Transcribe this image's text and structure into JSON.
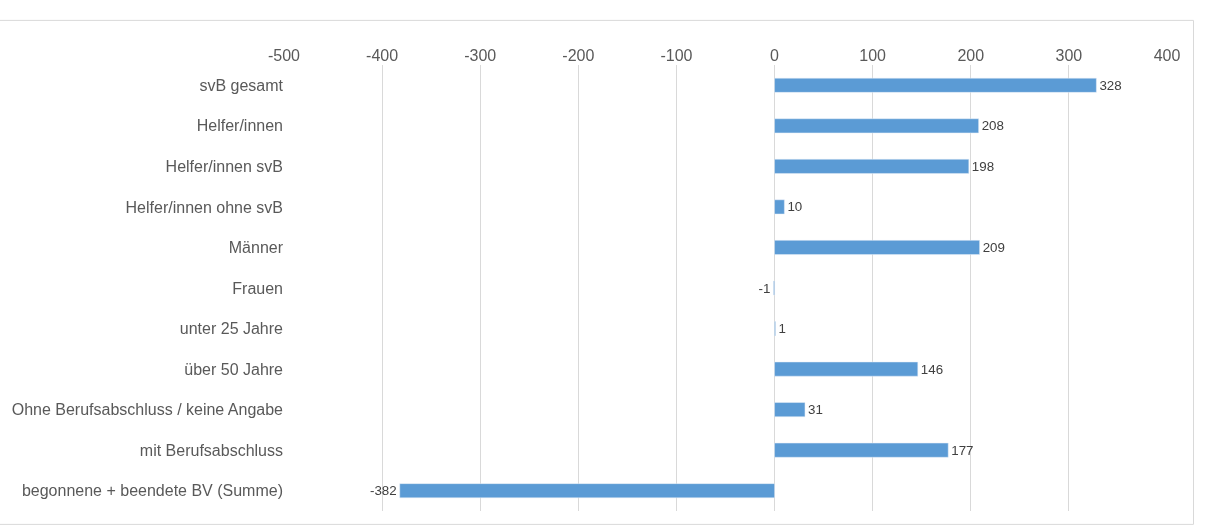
{
  "chart_data": {
    "type": "bar",
    "orientation": "horizontal",
    "categories": [
      "svB gesamt",
      "Helfer/innen",
      "Helfer/innen svB",
      "Helfer/innen ohne svB",
      "Männer",
      "Frauen",
      "unter 25 Jahre",
      "über 50 Jahre",
      "Ohne Berufsabschluss / keine Angabe",
      "mit Berufsabschluss",
      "begonnene + beendete BV (Summe)"
    ],
    "values": [
      328,
      208,
      198,
      10,
      209,
      -1,
      1,
      146,
      31,
      177,
      -382
    ],
    "color": "#5b9bd5",
    "xlim": [
      -500,
      400
    ],
    "xticks": [
      -500,
      -400,
      -300,
      -200,
      -100,
      0,
      100,
      200,
      300,
      400
    ],
    "grid": "x",
    "data_labels": true,
    "legend": false
  }
}
